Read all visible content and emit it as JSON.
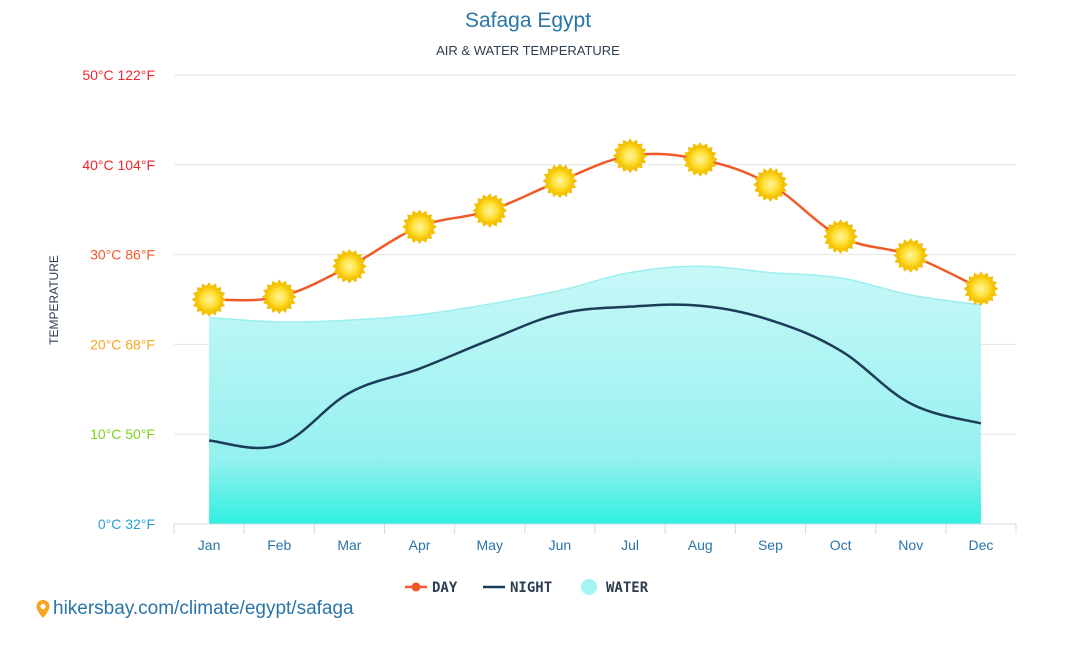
{
  "chart_data": {
    "type": "line",
    "title": "Safaga Egypt",
    "subtitle": "AIR & WATER TEMPERATURE",
    "ylabel": "TEMPERATURE",
    "ylim": [
      0,
      50
    ],
    "grid": true,
    "legend_position": "bottom-center",
    "categories": [
      "Jan",
      "Feb",
      "Mar",
      "Apr",
      "May",
      "Jun",
      "Jul",
      "Aug",
      "Sep",
      "Oct",
      "Nov",
      "Dec"
    ],
    "y_ticks": [
      {
        "value": 0,
        "label": "0°C 32°F",
        "color": "#2a9fd6"
      },
      {
        "value": 10,
        "label": "10°C 50°F",
        "color": "#7ed321"
      },
      {
        "value": 20,
        "label": "20°C 68°F",
        "color": "#f5a623"
      },
      {
        "value": 30,
        "label": "30°C 86°F",
        "color": "#f05a28"
      },
      {
        "value": 40,
        "label": "40°C 104°F",
        "color": "#f0282d"
      },
      {
        "value": 50,
        "label": "50°C 122°F",
        "color": "#f0282d"
      }
    ],
    "series": [
      {
        "name": "DAY",
        "type": "line",
        "color": "#f05a28",
        "marker": "sun-icon",
        "values": [
          25.0,
          25.3,
          28.7,
          33.1,
          34.9,
          38.2,
          41.0,
          40.6,
          37.8,
          32.0,
          29.9,
          26.2
        ]
      },
      {
        "name": "NIGHT",
        "type": "line",
        "color": "#1c3d5a",
        "values": [
          9.3,
          8.8,
          14.6,
          17.3,
          20.5,
          23.4,
          24.2,
          24.3,
          22.7,
          19.3,
          13.4,
          11.2
        ]
      },
      {
        "name": "WATER",
        "type": "area",
        "color": "#a4f4f4",
        "values": [
          23.0,
          22.5,
          22.7,
          23.3,
          24.5,
          26.0,
          28.0,
          28.7,
          28.0,
          27.4,
          25.5,
          24.4
        ]
      }
    ]
  },
  "source": {
    "text": "hikersbay.com/climate/egypt/safaga",
    "icon": "map-pin-icon"
  },
  "colors": {
    "title": "#2a74a8",
    "axis": "#d0dce8",
    "grid": "#e6e6e6"
  }
}
